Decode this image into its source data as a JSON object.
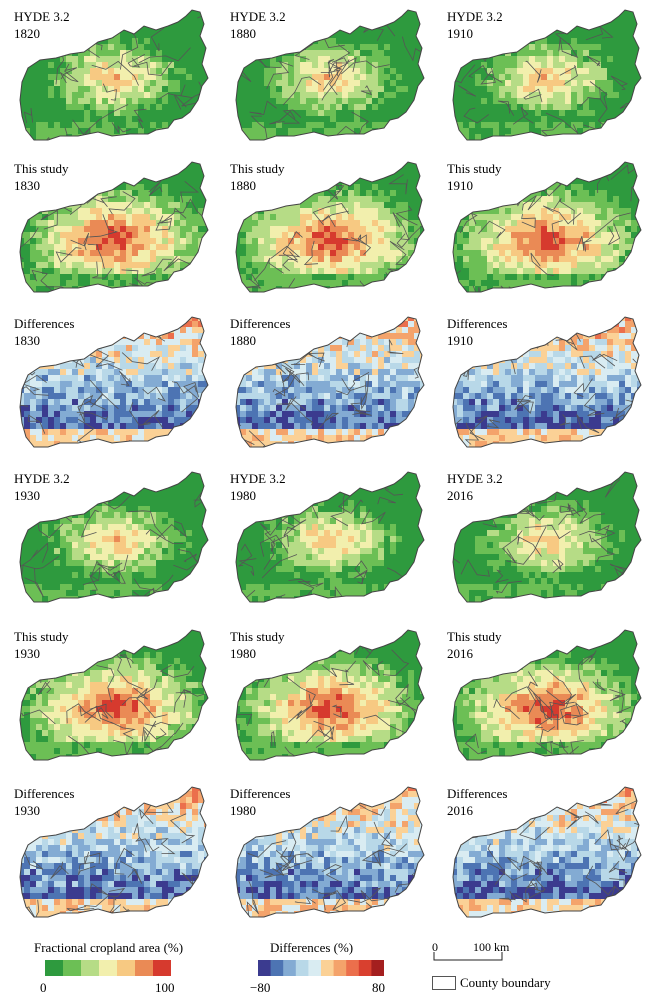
{
  "panels": [
    {
      "source": "HYDE 3.2",
      "year": "1820",
      "kind": "hyde"
    },
    {
      "source": "HYDE 3.2",
      "year": "1880",
      "kind": "hyde"
    },
    {
      "source": "HYDE 3.2",
      "year": "1910",
      "kind": "hyde"
    },
    {
      "source": "This study",
      "year": "1830",
      "kind": "study"
    },
    {
      "source": "This study",
      "year": "1880",
      "kind": "study"
    },
    {
      "source": "This study",
      "year": "1910",
      "kind": "study"
    },
    {
      "source": "Differences",
      "year": "1830",
      "kind": "diff"
    },
    {
      "source": "Differences",
      "year": "1880",
      "kind": "diff"
    },
    {
      "source": "Differences",
      "year": "1910",
      "kind": "diff"
    },
    {
      "source": "HYDE 3.2",
      "year": "1930",
      "kind": "hyde"
    },
    {
      "source": "HYDE 3.2",
      "year": "1980",
      "kind": "hyde"
    },
    {
      "source": "HYDE 3.2",
      "year": "2016",
      "kind": "hyde"
    },
    {
      "source": "This study",
      "year": "1930",
      "kind": "study"
    },
    {
      "source": "This study",
      "year": "1980",
      "kind": "study"
    },
    {
      "source": "This study",
      "year": "2016",
      "kind": "study"
    },
    {
      "source": "Differences",
      "year": "1930",
      "kind": "diff"
    },
    {
      "source": "Differences",
      "year": "1980",
      "kind": "diff"
    },
    {
      "source": "Differences",
      "year": "2016",
      "kind": "diff"
    }
  ],
  "legend": {
    "cropland": {
      "title": "Fractional cropland area (%)",
      "min": "0",
      "max": "100"
    },
    "differences": {
      "title": "Differences (%)",
      "min": "−80",
      "max": "80"
    },
    "scale": {
      "start": "0",
      "end": "100 km"
    },
    "boundary": {
      "label": "County boundary"
    }
  },
  "colors": {
    "cropland_ramp": [
      "#2e9a3e",
      "#6cbf55",
      "#b6dc86",
      "#f2efad",
      "#f7c982",
      "#ea8a55",
      "#d63a2e"
    ],
    "diff_ramp": [
      "#3b3b8f",
      "#4d74b3",
      "#83abd3",
      "#b8d8e8",
      "#d9ecf2",
      "#fbd196",
      "#f4a36b",
      "#eb6f4c",
      "#d9402f",
      "#a41f1f"
    ],
    "boundary": "#555555"
  }
}
